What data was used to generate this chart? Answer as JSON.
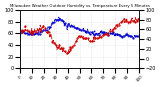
{
  "title": "Milwaukee Weather Outdoor Humidity vs. Temperature Every 5 Minutes",
  "bg_color": "#ffffff",
  "grid_color": "#cccccc",
  "series1_color": "#0000cc",
  "series2_color": "#cc0000",
  "xlim": [
    0,
    100
  ],
  "ylim_left": [
    0,
    100
  ],
  "ylim_right": [
    -20,
    20
  ],
  "figsize": [
    1.6,
    0.87
  ],
  "dpi": 100
}
